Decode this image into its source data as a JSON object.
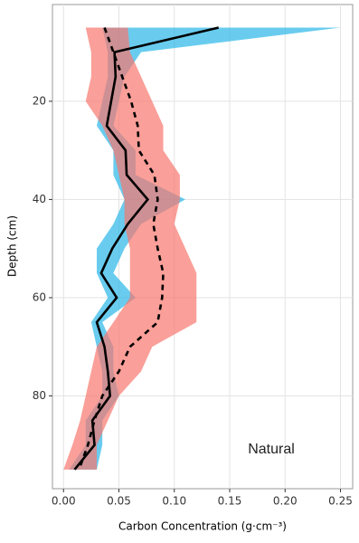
{
  "chart_data": {
    "type": "depth-profile",
    "x_label": "Carbon Concentration (g·cm⁻³)",
    "y_label": "Depth (cm)",
    "annotation": "Natural",
    "depth": [
      5,
      10,
      15,
      20,
      25,
      30,
      35,
      40,
      45,
      50,
      55,
      60,
      65,
      70,
      75,
      80,
      85,
      90,
      95
    ],
    "series": [
      {
        "color": "#000000",
        "ribbon_color": "#29b6e8",
        "dash": false,
        "values": [
          0.14,
          0.046,
          0.047,
          0.043,
          0.039,
          0.056,
          0.057,
          0.076,
          0.058,
          0.044,
          0.034,
          0.048,
          0.03,
          0.037,
          0.04,
          0.042,
          0.026,
          0.028,
          0.01
        ],
        "lower": [
          0.035,
          0.04,
          0.04,
          0.035,
          0.03,
          0.045,
          0.045,
          0.055,
          0.045,
          0.03,
          0.03,
          0.04,
          0.025,
          0.03,
          0.035,
          0.035,
          0.02,
          0.02,
          0.005
        ],
        "upper": [
          0.25,
          0.07,
          0.055,
          0.05,
          0.045,
          0.065,
          0.065,
          0.11,
          0.07,
          0.055,
          0.045,
          0.065,
          0.035,
          0.045,
          0.045,
          0.05,
          0.035,
          0.035,
          0.03
        ]
      },
      {
        "color": "#000000",
        "ribbon_color": "#f8766d",
        "dash": true,
        "values": [
          0.037,
          0.045,
          0.053,
          0.061,
          0.067,
          0.068,
          0.082,
          0.085,
          0.081,
          0.085,
          0.09,
          0.089,
          0.085,
          0.06,
          0.05,
          0.035,
          0.028,
          0.022,
          0.014
        ],
        "lower": [
          0.02,
          0.025,
          0.025,
          0.02,
          0.035,
          0.045,
          0.05,
          0.055,
          0.055,
          0.06,
          0.06,
          0.06,
          0.045,
          0.03,
          0.025,
          0.02,
          0.015,
          0.008,
          0.0
        ],
        "upper": [
          0.058,
          0.06,
          0.07,
          0.08,
          0.09,
          0.09,
          0.105,
          0.105,
          0.1,
          0.11,
          0.12,
          0.12,
          0.12,
          0.08,
          0.07,
          0.05,
          0.04,
          0.03,
          0.03
        ]
      }
    ],
    "xlim": [
      -0.01,
      0.261
    ],
    "xticks": [
      {
        "value": 0,
        "label": "0.00"
      },
      0.05,
      {
        "value": 0.1,
        "label": "0.10"
      },
      0.15,
      {
        "value": 0.2,
        "label": "0.20"
      },
      0.25
    ],
    "ylim": [
      0.3,
      98.9
    ],
    "yticks": [
      20,
      40,
      60,
      80
    ],
    "y_reversed": true,
    "grid": true
  }
}
